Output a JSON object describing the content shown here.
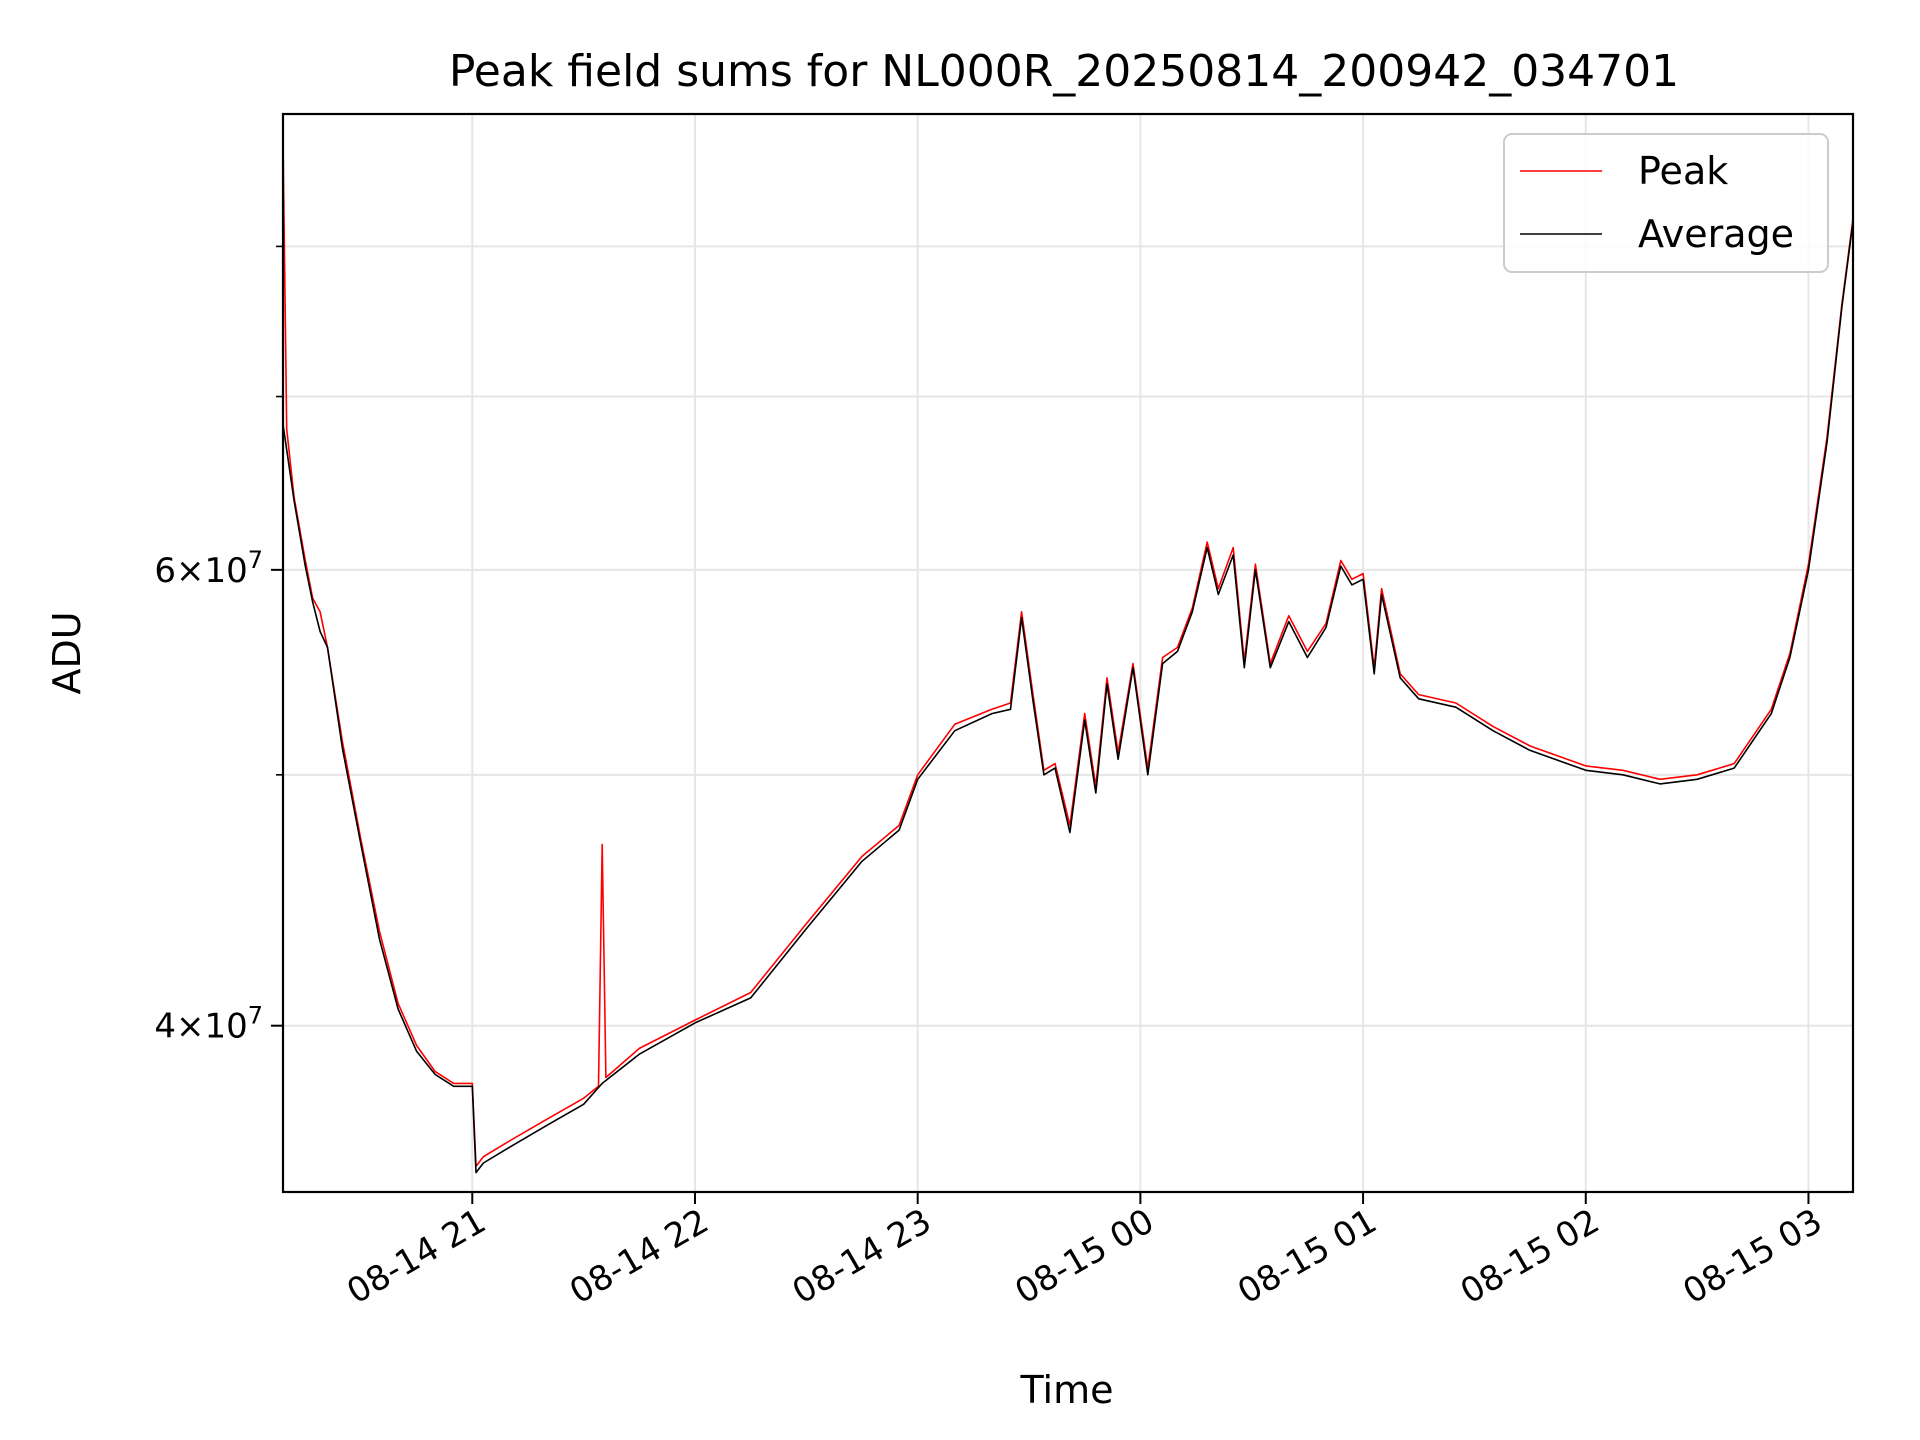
{
  "chart_data": {
    "type": "line",
    "title": "Peak field sums for NL000R_20250814_200942_034701",
    "xlabel": "Time",
    "ylabel": "ADU",
    "y_scale": "log",
    "xlim": [
      "2025-08-14 20:09",
      "2025-08-15 03:12"
    ],
    "ylim": [
      34500000,
      90000000
    ],
    "x_ticks": [
      {
        "value": "2025-08-14 21:00",
        "label": "08-14 21"
      },
      {
        "value": "2025-08-14 22:00",
        "label": "08-14 22"
      },
      {
        "value": "2025-08-14 23:00",
        "label": "08-14 23"
      },
      {
        "value": "2025-08-15 00:00",
        "label": "08-15 00"
      },
      {
        "value": "2025-08-15 01:00",
        "label": "08-15 01"
      },
      {
        "value": "2025-08-15 02:00",
        "label": "08-15 02"
      },
      {
        "value": "2025-08-15 03:00",
        "label": "08-15 03"
      }
    ],
    "y_major_ticks": [
      {
        "value": 40000000,
        "base": "4",
        "exp": "7"
      },
      {
        "value": 60000000,
        "base": "6",
        "exp": "7"
      }
    ],
    "y_minor_ticks": [
      50000000,
      70000000,
      80000000
    ],
    "grid": true,
    "legend_position": "top-right",
    "series": [
      {
        "name": "Peak",
        "color": "#ff0000",
        "points": [
          [
            "2025-08-14 20:09",
            88000000
          ],
          [
            "2025-08-14 20:10",
            68000000
          ],
          [
            "2025-08-14 20:12",
            64000000
          ],
          [
            "2025-08-14 20:15",
            60500000
          ],
          [
            "2025-08-14 20:17",
            58500000
          ],
          [
            "2025-08-14 20:19",
            57800000
          ],
          [
            "2025-08-14 20:21",
            56000000
          ],
          [
            "2025-08-14 20:25",
            51500000
          ],
          [
            "2025-08-14 20:30",
            47200000
          ],
          [
            "2025-08-14 20:35",
            43500000
          ],
          [
            "2025-08-14 20:40",
            40800000
          ],
          [
            "2025-08-14 20:45",
            39300000
          ],
          [
            "2025-08-14 20:50",
            38400000
          ],
          [
            "2025-08-14 20:55",
            38000000
          ],
          [
            "2025-08-14 21:00",
            38000000
          ],
          [
            "2025-08-14 21:01",
            35300000
          ],
          [
            "2025-08-14 21:03",
            35600000
          ],
          [
            "2025-08-14 21:10",
            36100000
          ],
          [
            "2025-08-14 21:20",
            36800000
          ],
          [
            "2025-08-14 21:30",
            37500000
          ],
          [
            "2025-08-14 21:34",
            37900000
          ],
          [
            "2025-08-14 21:35",
            47000000
          ],
          [
            "2025-08-14 21:36",
            38200000
          ],
          [
            "2025-08-14 21:45",
            39200000
          ],
          [
            "2025-08-14 22:00",
            40200000
          ],
          [
            "2025-08-14 22:15",
            41200000
          ],
          [
            "2025-08-14 22:30",
            43800000
          ],
          [
            "2025-08-14 22:45",
            46500000
          ],
          [
            "2025-08-14 22:55",
            47800000
          ],
          [
            "2025-08-14 23:00",
            50000000
          ],
          [
            "2025-08-14 23:10",
            52300000
          ],
          [
            "2025-08-14 23:20",
            53000000
          ],
          [
            "2025-08-14 23:25",
            53300000
          ],
          [
            "2025-08-14 23:28",
            57800000
          ],
          [
            "2025-08-14 23:31",
            53800000
          ],
          [
            "2025-08-14 23:34",
            50200000
          ],
          [
            "2025-08-14 23:37",
            50500000
          ],
          [
            "2025-08-14 23:41",
            47800000
          ],
          [
            "2025-08-14 23:45",
            52800000
          ],
          [
            "2025-08-14 23:48",
            49500000
          ],
          [
            "2025-08-14 23:51",
            54500000
          ],
          [
            "2025-08-14 23:54",
            51000000
          ],
          [
            "2025-08-14 23:58",
            55200000
          ],
          [
            "2025-08-15 00:02",
            50300000
          ],
          [
            "2025-08-15 00:06",
            55500000
          ],
          [
            "2025-08-15 00:10",
            56000000
          ],
          [
            "2025-08-15 00:14",
            58000000
          ],
          [
            "2025-08-15 00:18",
            61500000
          ],
          [
            "2025-08-15 00:21",
            59000000
          ],
          [
            "2025-08-15 00:25",
            61200000
          ],
          [
            "2025-08-15 00:28",
            55300000
          ],
          [
            "2025-08-15 00:31",
            60300000
          ],
          [
            "2025-08-15 00:35",
            55200000
          ],
          [
            "2025-08-15 00:40",
            57600000
          ],
          [
            "2025-08-15 00:45",
            55800000
          ],
          [
            "2025-08-15 00:50",
            57200000
          ],
          [
            "2025-08-15 00:54",
            60500000
          ],
          [
            "2025-08-15 00:57",
            59500000
          ],
          [
            "2025-08-15 01:00",
            59800000
          ],
          [
            "2025-08-15 01:03",
            55000000
          ],
          [
            "2025-08-15 01:05",
            59000000
          ],
          [
            "2025-08-15 01:10",
            54700000
          ],
          [
            "2025-08-15 01:15",
            53700000
          ],
          [
            "2025-08-15 01:25",
            53300000
          ],
          [
            "2025-08-15 01:35",
            52200000
          ],
          [
            "2025-08-15 01:45",
            51300000
          ],
          [
            "2025-08-15 02:00",
            50400000
          ],
          [
            "2025-08-15 02:10",
            50200000
          ],
          [
            "2025-08-15 02:20",
            49800000
          ],
          [
            "2025-08-15 02:30",
            50000000
          ],
          [
            "2025-08-15 02:40",
            50500000
          ],
          [
            "2025-08-15 02:50",
            53000000
          ],
          [
            "2025-08-15 02:55",
            55700000
          ],
          [
            "2025-08-15 03:00",
            60300000
          ],
          [
            "2025-08-15 03:05",
            67500000
          ],
          [
            "2025-08-15 03:09",
            76000000
          ],
          [
            "2025-08-15 03:12",
            82000000
          ]
        ]
      },
      {
        "name": "Average",
        "color": "#000000",
        "points": [
          [
            "2025-08-14 20:09",
            68300000
          ],
          [
            "2025-08-14 20:12",
            63800000
          ],
          [
            "2025-08-14 20:15",
            60200000
          ],
          [
            "2025-08-14 20:17",
            58300000
          ],
          [
            "2025-08-14 20:19",
            56800000
          ],
          [
            "2025-08-14 20:21",
            56000000
          ],
          [
            "2025-08-14 20:25",
            51200000
          ],
          [
            "2025-08-14 20:30",
            47000000
          ],
          [
            "2025-08-14 20:35",
            43200000
          ],
          [
            "2025-08-14 20:40",
            40600000
          ],
          [
            "2025-08-14 20:45",
            39100000
          ],
          [
            "2025-08-14 20:50",
            38300000
          ],
          [
            "2025-08-14 20:55",
            37900000
          ],
          [
            "2025-08-14 21:00",
            37900000
          ],
          [
            "2025-08-14 21:01",
            35100000
          ],
          [
            "2025-08-14 21:03",
            35400000
          ],
          [
            "2025-08-14 21:10",
            35900000
          ],
          [
            "2025-08-14 21:20",
            36600000
          ],
          [
            "2025-08-14 21:30",
            37300000
          ],
          [
            "2025-08-14 21:35",
            38000000
          ],
          [
            "2025-08-14 21:45",
            39000000
          ],
          [
            "2025-08-14 22:00",
            40100000
          ],
          [
            "2025-08-14 22:15",
            41000000
          ],
          [
            "2025-08-14 22:30",
            43600000
          ],
          [
            "2025-08-14 22:45",
            46300000
          ],
          [
            "2025-08-14 22:55",
            47600000
          ],
          [
            "2025-08-14 23:00",
            49800000
          ],
          [
            "2025-08-14 23:10",
            52000000
          ],
          [
            "2025-08-14 23:20",
            52800000
          ],
          [
            "2025-08-14 23:25",
            53000000
          ],
          [
            "2025-08-14 23:28",
            57500000
          ],
          [
            "2025-08-14 23:31",
            53500000
          ],
          [
            "2025-08-14 23:34",
            50000000
          ],
          [
            "2025-08-14 23:37",
            50300000
          ],
          [
            "2025-08-14 23:41",
            47500000
          ],
          [
            "2025-08-14 23:45",
            52500000
          ],
          [
            "2025-08-14 23:48",
            49200000
          ],
          [
            "2025-08-14 23:51",
            54200000
          ],
          [
            "2025-08-14 23:54",
            50700000
          ],
          [
            "2025-08-14 23:58",
            55000000
          ],
          [
            "2025-08-15 00:02",
            50000000
          ],
          [
            "2025-08-15 00:06",
            55200000
          ],
          [
            "2025-08-15 00:10",
            55800000
          ],
          [
            "2025-08-15 00:14",
            57800000
          ],
          [
            "2025-08-15 00:18",
            61200000
          ],
          [
            "2025-08-15 00:21",
            58700000
          ],
          [
            "2025-08-15 00:25",
            60800000
          ],
          [
            "2025-08-15 00:28",
            55000000
          ],
          [
            "2025-08-15 00:31",
            60000000
          ],
          [
            "2025-08-15 00:35",
            55000000
          ],
          [
            "2025-08-15 00:40",
            57300000
          ],
          [
            "2025-08-15 00:45",
            55500000
          ],
          [
            "2025-08-15 00:50",
            57000000
          ],
          [
            "2025-08-15 00:54",
            60200000
          ],
          [
            "2025-08-15 00:57",
            59200000
          ],
          [
            "2025-08-15 01:00",
            59500000
          ],
          [
            "2025-08-15 01:03",
            54700000
          ],
          [
            "2025-08-15 01:05",
            58700000
          ],
          [
            "2025-08-15 01:10",
            54500000
          ],
          [
            "2025-08-15 01:15",
            53500000
          ],
          [
            "2025-08-15 01:25",
            53100000
          ],
          [
            "2025-08-15 01:35",
            52000000
          ],
          [
            "2025-08-15 01:45",
            51100000
          ],
          [
            "2025-08-15 02:00",
            50200000
          ],
          [
            "2025-08-15 02:10",
            50000000
          ],
          [
            "2025-08-15 02:20",
            49600000
          ],
          [
            "2025-08-15 02:30",
            49800000
          ],
          [
            "2025-08-15 02:40",
            50300000
          ],
          [
            "2025-08-15 02:50",
            52800000
          ],
          [
            "2025-08-15 02:55",
            55500000
          ],
          [
            "2025-08-15 03:00",
            60000000
          ],
          [
            "2025-08-15 03:05",
            67200000
          ],
          [
            "2025-08-15 03:09",
            75800000
          ],
          [
            "2025-08-15 03:12",
            81800000
          ]
        ]
      }
    ]
  }
}
